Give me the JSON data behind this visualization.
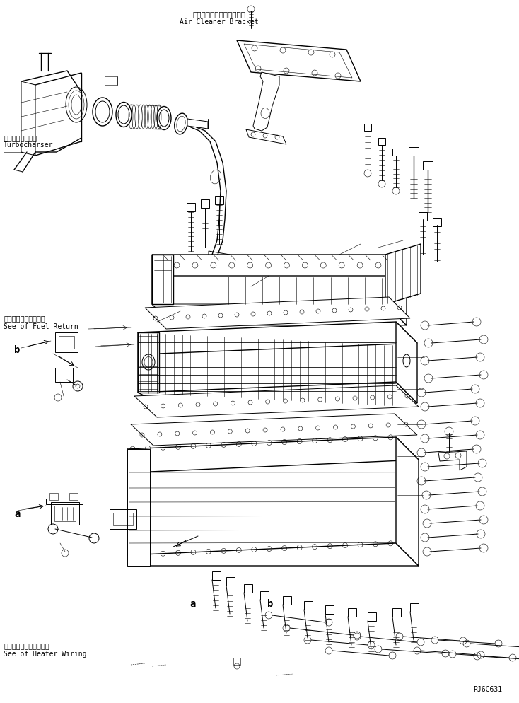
{
  "bg_color": "#ffffff",
  "line_color": "#000000",
  "fig_width": 7.34,
  "fig_height": 9.94,
  "dpi": 100,
  "labels": {
    "top_japanese": "エアークリーナブラケット",
    "top_english": "Air Cleaner Bracket",
    "turbo_japanese": "ターボチャージャ",
    "turbo_english": "Turbocharser",
    "fuel_japanese": "フュエルリターン参照",
    "fuel_english": "See of Fuel Return",
    "heater_japanese": "ヒータワイヤリング参照",
    "heater_english": "See of Heater Wiring",
    "label_b_left": "b",
    "label_a_left": "a",
    "label_a_center": "a",
    "label_b_center": "b",
    "part_number": "PJ6C631"
  }
}
